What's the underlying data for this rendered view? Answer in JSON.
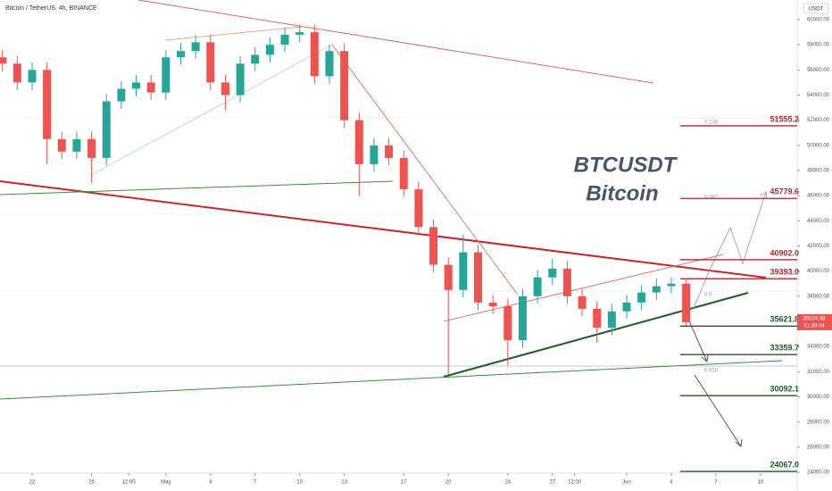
{
  "header": {
    "title": "Bitcoin / TetherUS, 4h, BINANCE",
    "currency": "USDT"
  },
  "chart_data": {
    "type": "candlestick",
    "up_color": "#26a69a",
    "down_color": "#ef5350",
    "x": [
      -2,
      -1,
      0,
      1,
      2,
      3,
      4,
      5,
      6,
      7,
      8,
      9,
      10,
      11,
      12,
      13,
      14,
      15,
      16,
      17,
      18,
      19,
      20,
      21,
      22,
      23,
      24,
      25,
      26,
      27,
      28,
      29,
      30,
      31,
      32,
      33,
      34,
      35,
      36,
      37,
      38,
      39,
      40,
      41,
      42,
      43,
      44
    ],
    "open": [
      57000,
      56500,
      55000,
      56000,
      50500,
      49500,
      50500,
      49000,
      53500,
      54500,
      55000,
      54200,
      57000,
      57500,
      58200,
      55000,
      54000,
      56500,
      57200,
      58000,
      58800,
      59000,
      55500,
      57500,
      52000,
      48500,
      50000,
      49000,
      46500,
      43500,
      40500,
      38500,
      41500,
      37500,
      37200,
      34500,
      38000,
      39500,
      40200,
      38000,
      37000,
      35500,
      36800,
      37500,
      38300,
      38800,
      39000
    ],
    "high": [
      57600,
      57100,
      56600,
      56600,
      51100,
      51100,
      51100,
      54100,
      55100,
      55600,
      55600,
      57600,
      58100,
      58800,
      58800,
      55600,
      57100,
      57800,
      58600,
      59400,
      59600,
      59600,
      58000,
      58100,
      52600,
      50600,
      50600,
      49600,
      47100,
      44100,
      41100,
      42900,
      42100,
      38100,
      37800,
      38600,
      40100,
      41000,
      40800,
      38600,
      37600,
      37400,
      38100,
      38900,
      39400,
      39500,
      39300
    ],
    "low": [
      55900,
      54400,
      54400,
      48500,
      48900,
      48900,
      47000,
      48400,
      52900,
      53900,
      53600,
      53600,
      56400,
      56900,
      54400,
      52800,
      53400,
      55900,
      56600,
      57400,
      58200,
      54900,
      54900,
      51400,
      46000,
      47900,
      48400,
      45900,
      42900,
      39900,
      31800,
      37900,
      36900,
      36600,
      32500,
      33900,
      37400,
      38900,
      37400,
      36400,
      34300,
      34900,
      36200,
      36900,
      37700,
      38200,
      35600
    ],
    "close": [
      56500,
      55000,
      56000,
      50500,
      49500,
      50500,
      49000,
      53500,
      54500,
      55000,
      54200,
      57000,
      57500,
      58200,
      55000,
      54000,
      56500,
      57200,
      58000,
      58800,
      59000,
      55500,
      57500,
      52000,
      48500,
      50000,
      49000,
      46500,
      43500,
      40500,
      38500,
      41500,
      37500,
      37200,
      34500,
      38000,
      39500,
      40200,
      38000,
      37000,
      35500,
      36800,
      37500,
      38300,
      38800,
      39000,
      35935
    ],
    "xlim": [
      -2.16,
      51.47
    ],
    "ylim": [
      23220,
      61560
    ],
    "xticks": [
      {
        "value": 0,
        "label": "22"
      },
      {
        "value": 4,
        "label": "26"
      },
      {
        "value": 6.5,
        "label": "12:00"
      },
      {
        "value": 9,
        "label": "May"
      },
      {
        "value": 12,
        "label": "4"
      },
      {
        "value": 15,
        "label": "7"
      },
      {
        "value": 18,
        "label": "10"
      },
      {
        "value": 21,
        "label": "13"
      },
      {
        "value": 25,
        "label": "17"
      },
      {
        "value": 28,
        "label": "20"
      },
      {
        "value": 32,
        "label": "24"
      },
      {
        "value": 35,
        "label": "27"
      },
      {
        "value": 36.5,
        "label": "12:00"
      },
      {
        "value": 40,
        "label": "Jun"
      },
      {
        "value": 43,
        "label": "4"
      },
      {
        "value": 46,
        "label": "7"
      },
      {
        "value": 49,
        "label": "10"
      }
    ],
    "yticks": [
      {
        "value": 24000,
        "label": "24000.00"
      },
      {
        "value": 26000,
        "label": "26000.00"
      },
      {
        "value": 28000,
        "label": "28000.00"
      },
      {
        "value": 30000,
        "label": "30000.00"
      },
      {
        "value": 32000,
        "label": "32000.00"
      },
      {
        "value": 34000,
        "label": "34000.00"
      },
      {
        "value": 36000,
        "label": "36000.00"
      },
      {
        "value": 38000,
        "label": "38000.00"
      },
      {
        "value": 40000,
        "label": "40000.00"
      },
      {
        "value": 42000,
        "label": "42000.00"
      },
      {
        "value": 44000,
        "label": "44000.00"
      },
      {
        "value": 46000,
        "label": "46000.00"
      },
      {
        "value": 48000,
        "label": "48000.00"
      },
      {
        "value": 50000,
        "label": "50000.00"
      },
      {
        "value": 52000,
        "label": "52000.00"
      },
      {
        "value": 54000,
        "label": "54000.00"
      },
      {
        "value": 56000,
        "label": "56000.00"
      },
      {
        "value": 58000,
        "label": "58000.00"
      },
      {
        "value": 60000,
        "label": "60000.00"
      }
    ],
    "last_price": {
      "value": 35934.98,
      "label": "35934.98",
      "countdown": "01:39:04",
      "color": "#ef5350"
    },
    "levels": [
      {
        "value": 51555.2,
        "label": "51555.2",
        "color": "#b22833"
      },
      {
        "value": 45779.6,
        "label": "45779.6",
        "color": "#b22833"
      },
      {
        "value": 40902.0,
        "label": "40902.0",
        "color": "#b22833"
      },
      {
        "value": 39393.0,
        "label": "39393.0",
        "color": "#b22833"
      },
      {
        "value": 35621.8,
        "label": "35621.8",
        "color": "#1b5e20"
      },
      {
        "value": 33359.7,
        "label": "33359.7",
        "color": "#1b5e20"
      },
      {
        "value": 30092.1,
        "label": "30092.1",
        "color": "#1b5e20"
      },
      {
        "value": 24067.0,
        "label": "24067.0",
        "color": "#1b5e20"
      }
    ],
    "fib_labels": [
      {
        "value": 51830,
        "label": "0.236"
      },
      {
        "value": 45870,
        "label": "0.382"
      },
      {
        "value": 38130,
        "label": "0.5"
      },
      {
        "value": 32100,
        "label": "0.618"
      }
    ],
    "annotations": [
      "BTCUSDT",
      "Bitcoin"
    ]
  }
}
